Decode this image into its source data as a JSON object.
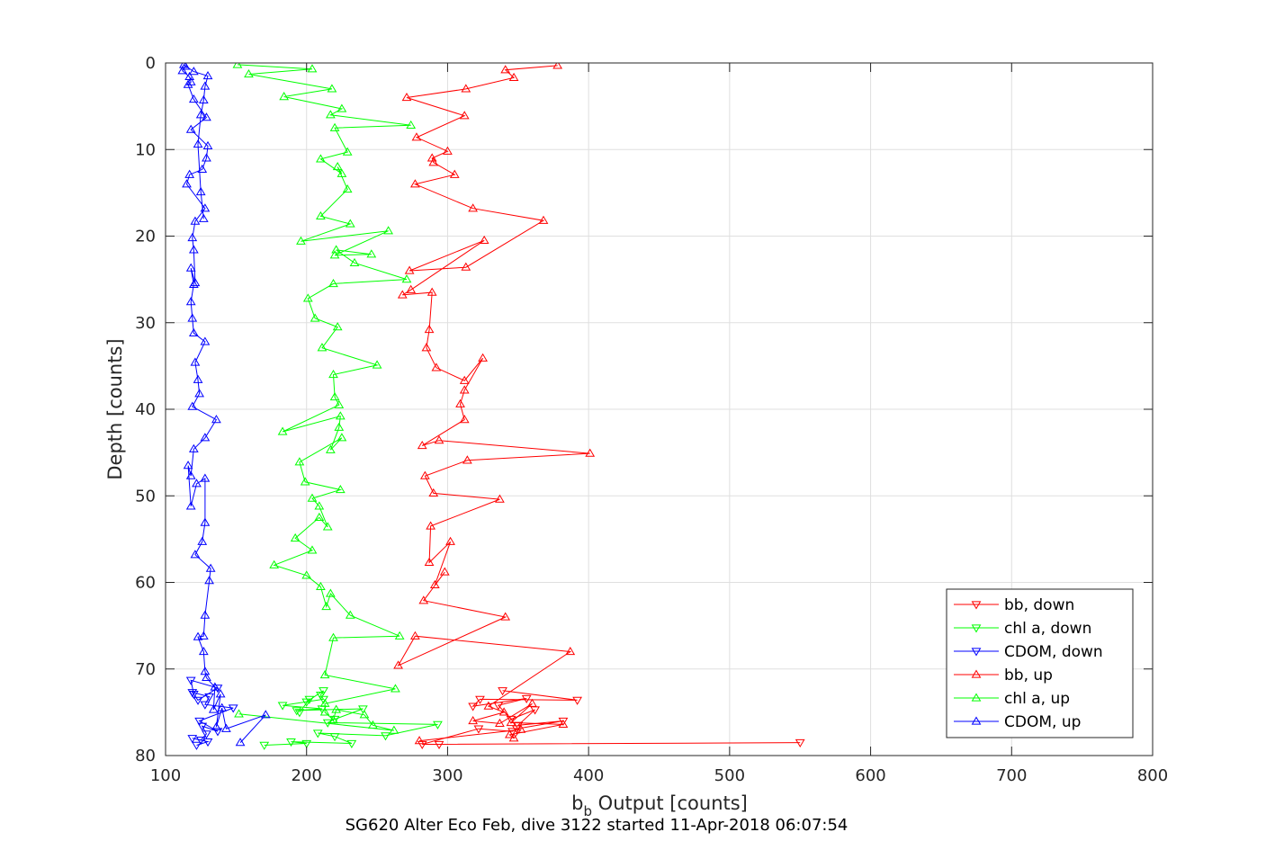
{
  "caption": "SG620 Alter Eco Feb, dive 3122 started 11-Apr-2018 06:07:54",
  "chart_data": {
    "type": "line",
    "xlabel_main": "b",
    "xlabel_sub": "b",
    "xlabel_rest": " Output [counts]",
    "ylabel": "Depth [counts]",
    "xlim": [
      100,
      800
    ],
    "ylim": [
      0,
      80
    ],
    "y_reversed": true,
    "xticks": [
      100,
      200,
      300,
      400,
      500,
      600,
      700,
      800
    ],
    "yticks": [
      0,
      10,
      20,
      30,
      40,
      50,
      60,
      70,
      80
    ],
    "grid": true,
    "legend_position": "bottom-right",
    "series": [
      {
        "name": "bb, down",
        "color": "#ff0000",
        "marker": "triangle-down",
        "x": [
          550,
          294,
          282,
          322,
          346,
          349,
          382,
          350,
          362,
          345,
          336,
          356,
          318,
          323,
          392,
          339
        ],
        "y": [
          78.5,
          78.7,
          78.7,
          76.9,
          77.2,
          76.9,
          76.0,
          76.5,
          74.7,
          75.8,
          74.2,
          73.4,
          74.3,
          73.5,
          73.6,
          72.5
        ]
      },
      {
        "name": "chl a, down",
        "color": "#00ff00",
        "marker": "triangle-down",
        "x": [
          170,
          200,
          189,
          232,
          220,
          208,
          256,
          293,
          215,
          220,
          240,
          193,
          211,
          183,
          212,
          210,
          212,
          200,
          202,
          195
        ],
        "y": [
          78.8,
          78.6,
          78.4,
          78.6,
          77.8,
          77.4,
          77.7,
          76.4,
          76.2,
          75.8,
          74.6,
          74.8,
          74.6,
          74.2,
          73.5,
          73.0,
          72.5,
          73.8,
          73.5,
          75.0
        ]
      },
      {
        "name": "CDOM, down",
        "color": "#0000ff",
        "marker": "triangle-down",
        "x": [
          122,
          130,
          119,
          125,
          129,
          126,
          137,
          124,
          148,
          128,
          131,
          119,
          123,
          137,
          118,
          120
        ],
        "y": [
          78.8,
          78.4,
          78.0,
          78.2,
          77.5,
          76.6,
          77.2,
          76.0,
          74.5,
          74.1,
          73.2,
          72.7,
          73.6,
          72.2,
          71.3,
          72.9
        ]
      },
      {
        "name": "bb, up",
        "color": "#ff0000",
        "marker": "triangle-up",
        "x": [
          280,
          352,
          347,
          344,
          382,
          345,
          360,
          337,
          318,
          340,
          329,
          387,
          277,
          265,
          341,
          283,
          298,
          291,
          302,
          287,
          288,
          337,
          290,
          284,
          314,
          401,
          294,
          282,
          312,
          309,
          312,
          325,
          312,
          292,
          285,
          287,
          289,
          268,
          274,
          326,
          273,
          313,
          368,
          318,
          277,
          305,
          290,
          289,
          300,
          278,
          312,
          271,
          313,
          347,
          341,
          378
        ],
        "y": [
          78.3,
          77.0,
          78.0,
          77.6,
          76.4,
          76.2,
          74.0,
          76.3,
          76.0,
          75.0,
          74.3,
          68.0,
          66.2,
          69.6,
          64.0,
          62.1,
          58.8,
          60.3,
          55.3,
          57.7,
          53.5,
          50.4,
          49.7,
          47.7,
          45.9,
          45.1,
          43.6,
          44.2,
          41.2,
          39.4,
          37.8,
          34.1,
          36.7,
          35.2,
          32.9,
          30.8,
          26.5,
          26.8,
          26.2,
          20.5,
          24.0,
          23.6,
          18.2,
          16.8,
          14.0,
          12.9,
          11.5,
          11.0,
          10.2,
          8.6,
          6.1,
          4.0,
          3.0,
          1.7,
          0.8,
          0.3
        ]
      },
      {
        "name": "chl a, up",
        "color": "#00ff00",
        "marker": "triangle-up",
        "x": [
          152,
          262,
          247,
          241,
          221,
          219,
          213,
          213,
          263,
          213,
          219,
          266,
          231,
          217,
          214,
          210,
          200,
          177,
          204,
          192,
          209,
          215,
          209,
          204,
          224,
          199,
          195,
          225,
          217,
          223,
          224,
          183,
          223,
          220,
          219,
          250,
          211,
          222,
          206,
          201,
          219,
          271,
          234,
          221,
          246,
          220,
          258,
          196,
          231,
          210,
          229,
          222,
          225,
          210,
          229,
          220,
          274,
          217,
          225,
          184,
          218,
          159,
          204,
          151
        ],
        "y": [
          75.2,
          77.1,
          76.5,
          75.3,
          74.7,
          75.9,
          75.0,
          74.0,
          72.3,
          70.7,
          66.4,
          66.2,
          63.8,
          61.3,
          62.8,
          60.5,
          59.2,
          58.0,
          56.3,
          54.9,
          52.5,
          53.6,
          51.2,
          50.3,
          49.3,
          48.4,
          46.1,
          43.3,
          44.7,
          42.1,
          40.8,
          42.6,
          39.5,
          38.6,
          36.0,
          34.9,
          32.9,
          30.5,
          29.5,
          27.2,
          25.5,
          25.0,
          23.1,
          21.6,
          22.1,
          22.2,
          19.4,
          20.6,
          18.6,
          17.7,
          14.6,
          12.0,
          12.8,
          11.1,
          10.3,
          7.5,
          7.2,
          6.0,
          5.3,
          3.9,
          3.0,
          1.3,
          0.7,
          0.2
        ]
      },
      {
        "name": "CDOM, up",
        "color": "#0000ff",
        "marker": "triangle-up",
        "x": [
          153,
          171,
          143,
          140,
          136,
          139,
          134,
          135,
          129,
          128,
          127,
          123,
          127,
          128,
          131,
          132,
          121,
          126,
          128,
          128,
          122,
          118,
          116,
          118,
          120,
          128,
          136,
          119,
          124,
          123,
          121,
          128,
          120,
          119,
          118,
          120,
          118,
          121,
          120,
          119,
          121,
          128,
          115,
          117,
          126,
          129,
          130,
          118,
          129,
          120,
          116,
          118,
          117,
          112,
          114,
          113,
          120,
          130,
          128,
          127,
          125,
          123,
          125,
          127
        ],
        "y": [
          78.5,
          75.3,
          76.9,
          74.5,
          76.7,
          72.9,
          74.7,
          72.1,
          71.0,
          70.3,
          68.0,
          66.3,
          66.2,
          63.8,
          59.8,
          58.4,
          56.8,
          55.3,
          53.1,
          48.0,
          48.6,
          51.2,
          46.5,
          47.7,
          44.6,
          43.3,
          41.2,
          39.7,
          38.2,
          36.6,
          34.6,
          32.2,
          31.2,
          29.5,
          27.6,
          25.6,
          23.7,
          25.4,
          21.6,
          20.2,
          18.3,
          16.8,
          14.0,
          12.9,
          12.3,
          11.0,
          9.6,
          7.7,
          6.3,
          4.2,
          2.5,
          2.2,
          1.6,
          0.9,
          0.4,
          0.2,
          1.0,
          1.5,
          2.7,
          4.3,
          6.0,
          9.4,
          14.9,
          18.0
        ]
      }
    ]
  }
}
